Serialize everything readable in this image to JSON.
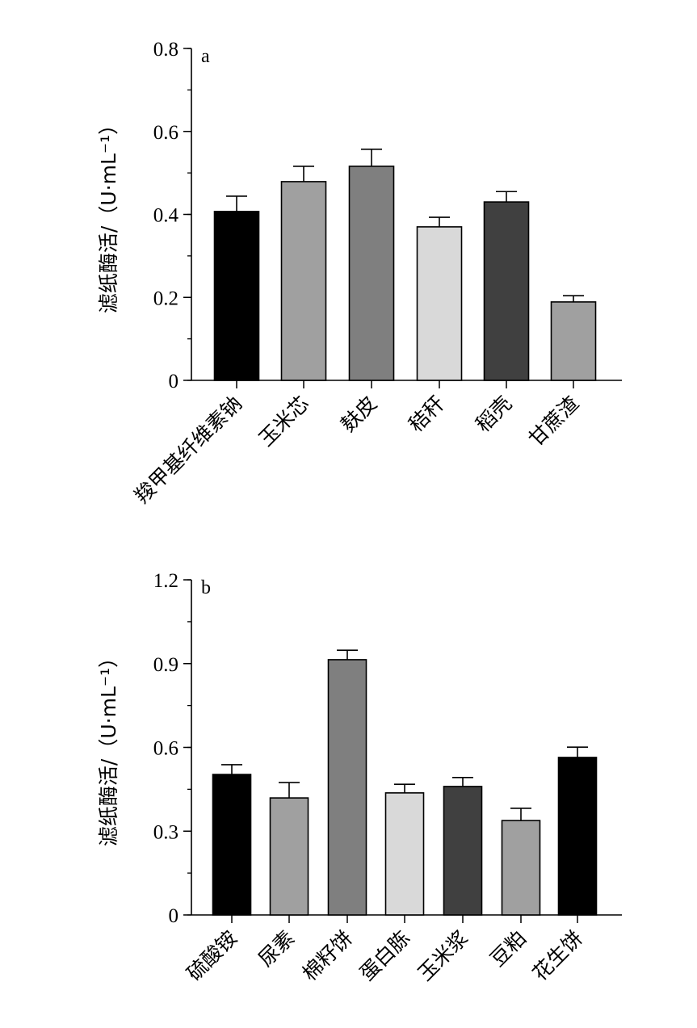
{
  "chart_data": [
    {
      "type": "bar",
      "panel_label": "a",
      "ylabel": "滤纸酶活/（U·mL⁻¹）",
      "ylim": [
        0,
        0.8
      ],
      "yticks": [
        "0",
        "0.2",
        "0.4",
        "0.6",
        "0.8"
      ],
      "ytick_values": [
        0,
        0.2,
        0.4,
        0.6,
        0.8
      ],
      "minor_tick_step": 0.1,
      "categories": [
        "羧甲基纤维素钠",
        "玉米芯",
        "麸皮",
        "秸秆",
        "稻壳",
        "甘蔗渣"
      ],
      "values": [
        0.407,
        0.479,
        0.516,
        0.37,
        0.43,
        0.189
      ],
      "errors": [
        0.037,
        0.037,
        0.041,
        0.023,
        0.025,
        0.015
      ],
      "colors": [
        "#000000",
        "#a0a0a0",
        "#7f7f7f",
        "#d9d9d9",
        "#404040",
        "#a0a0a0"
      ]
    },
    {
      "type": "bar",
      "panel_label": "b",
      "ylabel": "滤纸酶活/（U·mL⁻¹）",
      "ylim": [
        0,
        1.2
      ],
      "yticks": [
        "0",
        "0.3",
        "0.6",
        "0.9",
        "1.2"
      ],
      "ytick_values": [
        0,
        0.3,
        0.6,
        0.9,
        1.2
      ],
      "minor_tick_step": 0.15,
      "categories": [
        "硫酸铵",
        "尿素",
        "棉籽饼",
        "蛋白胨",
        "玉米浆",
        "豆粕",
        "花生饼"
      ],
      "values": [
        0.503,
        0.419,
        0.914,
        0.437,
        0.46,
        0.338,
        0.564
      ],
      "errors": [
        0.035,
        0.055,
        0.034,
        0.031,
        0.032,
        0.044,
        0.037
      ],
      "colors": [
        "#000000",
        "#a0a0a0",
        "#7f7f7f",
        "#d9d9d9",
        "#404040",
        "#a0a0a0",
        "#000000"
      ]
    }
  ]
}
